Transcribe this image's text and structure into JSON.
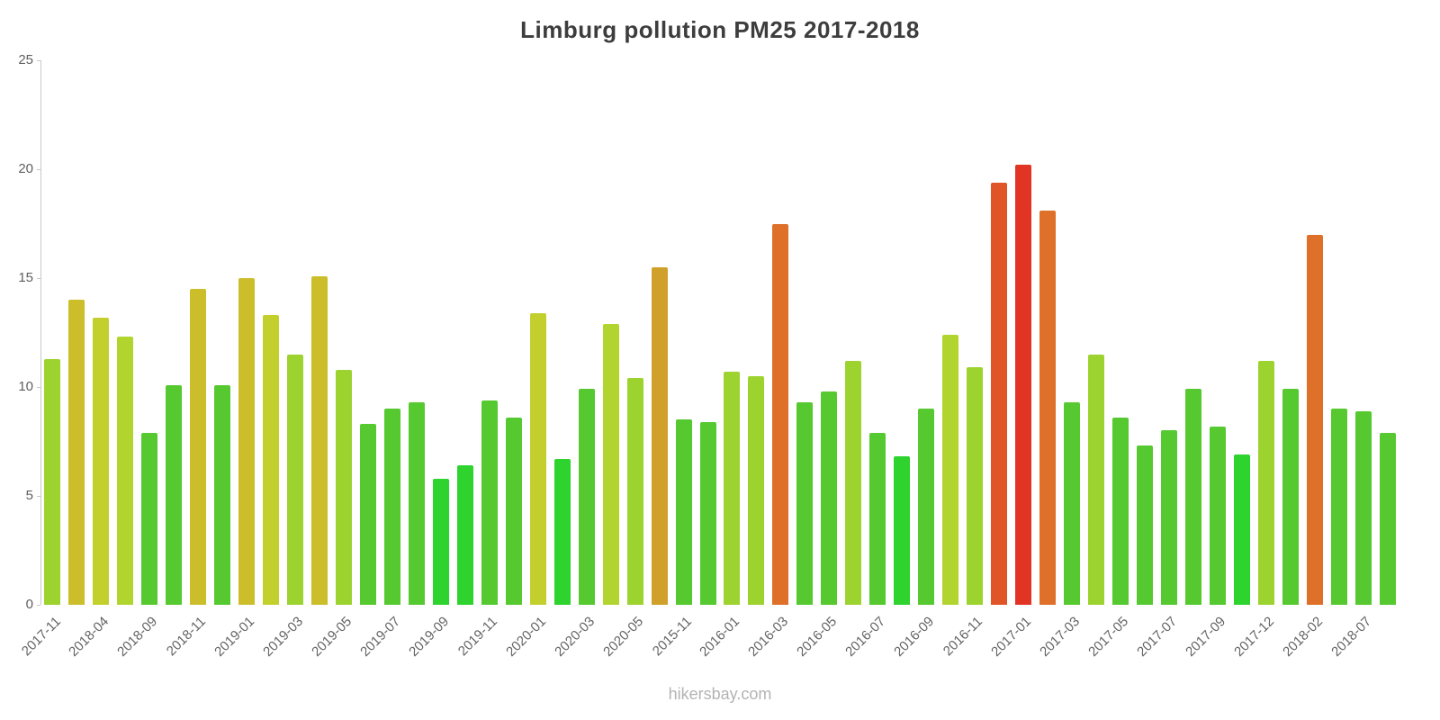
{
  "chart_data": {
    "type": "bar",
    "title": "Limburg pollution PM25 2017-2018",
    "xlabel": "",
    "ylabel": "",
    "ylim": [
      0,
      25
    ],
    "yticks": [
      0,
      5,
      10,
      15,
      20,
      25
    ],
    "grid": false,
    "legend": false,
    "label_every_n_bars": 2,
    "categories": [
      "2017-11",
      "2018-04",
      "2018-09",
      "2018-11",
      "2019-01",
      "2019-03",
      "2019-05",
      "2019-07",
      "2019-09",
      "2019-11",
      "2020-01",
      "2020-03",
      "2020-05",
      "2015-11",
      "2016-01",
      "2016-03",
      "2016-05",
      "2016-07",
      "2016-09",
      "2016-11",
      "2017-01",
      "2017-03",
      "2017-05",
      "2017-07",
      "2017-09",
      "2017-12",
      "2018-02",
      "2018-07"
    ],
    "values": [
      11.3,
      14.0,
      13.2,
      12.3,
      7.9,
      10.1,
      14.5,
      10.1,
      15.0,
      13.3,
      11.5,
      15.1,
      10.8,
      8.3,
      9.0,
      9.3,
      5.8,
      6.4,
      9.4,
      8.6,
      13.4,
      6.7,
      9.9,
      12.9,
      10.4,
      15.5,
      8.5,
      8.4,
      10.7,
      10.5,
      17.5,
      9.3,
      9.8,
      11.2,
      7.9,
      6.8,
      9.0,
      12.4,
      10.9,
      19.4,
      20.2,
      18.1,
      9.3,
      11.5,
      8.6,
      7.3,
      8.0,
      9.9,
      8.2,
      6.9,
      11.2,
      9.9,
      17.0,
      9.0,
      8.9,
      7.9
    ],
    "color_scale": [
      {
        "max": 7,
        "color": "#2ed32e"
      },
      {
        "max": 10.3,
        "color": "#56c930"
      },
      {
        "max": 11.8,
        "color": "#9dd32f"
      },
      {
        "max": 13.0,
        "color": "#b1d52e"
      },
      {
        "max": 13.8,
        "color": "#c3cf2d"
      },
      {
        "max": 15.25,
        "color": "#ccbd2b"
      },
      {
        "max": 16.5,
        "color": "#d0a02b"
      },
      {
        "max": 18.6,
        "color": "#de7029"
      },
      {
        "max": 19.8,
        "color": "#e05427"
      },
      {
        "max": 100,
        "color": "#e23425"
      }
    ],
    "axis_color": "#c8c8c8",
    "tick_label_color": "#5f5f5f",
    "title_color": "#3d3d3d"
  },
  "footer": {
    "text": "hikersbay.com"
  }
}
